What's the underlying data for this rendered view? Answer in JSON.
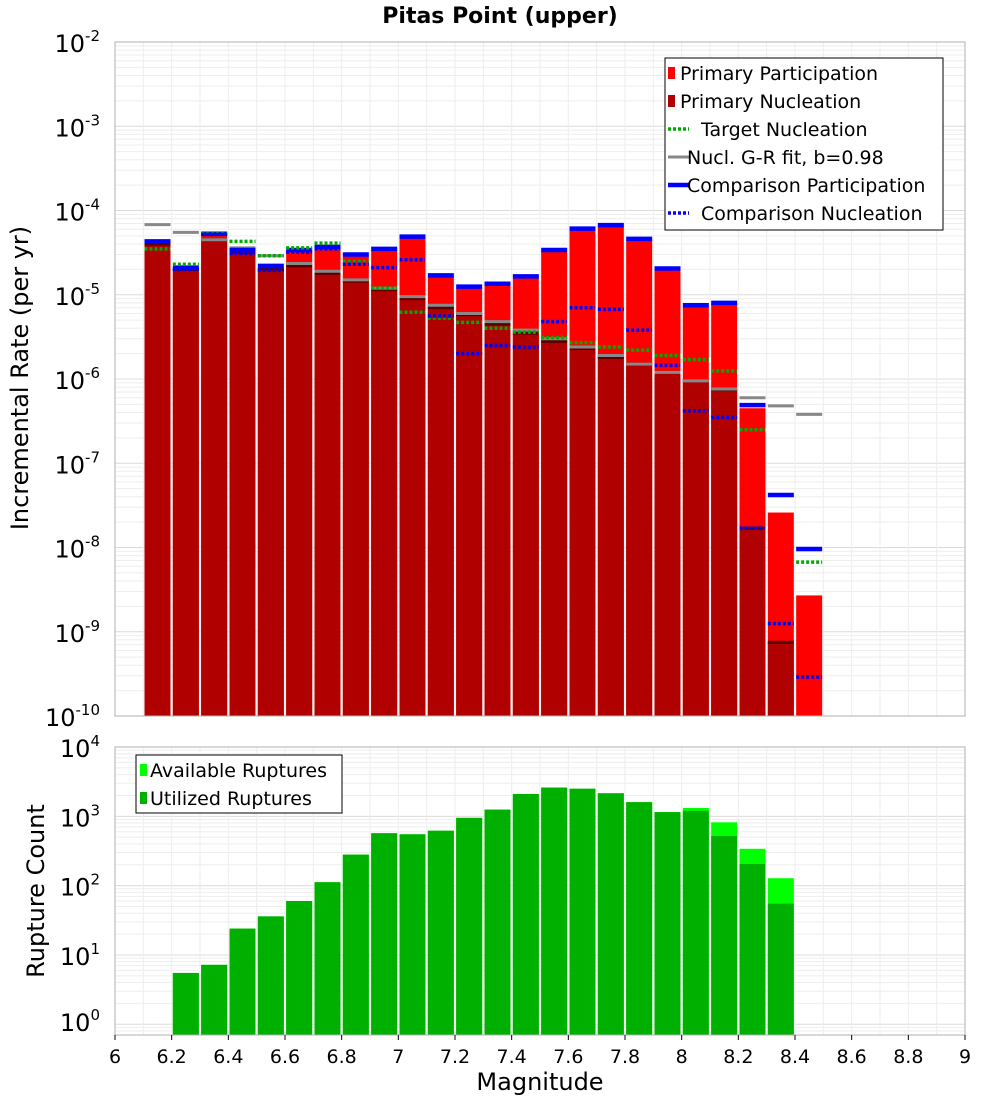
{
  "chart_data": [
    {
      "type": "bar",
      "title": "Pitas Point (upper)",
      "xlabel": "Magnitude",
      "ylabel": "Incremental Rate (per yr)",
      "yscale": "log",
      "xlim": [
        6,
        9
      ],
      "ylim": [
        1e-10,
        0.01
      ],
      "grid": true,
      "legend_position": "top-right",
      "x": [
        6.15,
        6.25,
        6.35,
        6.45,
        6.55,
        6.65,
        6.75,
        6.85,
        6.95,
        7.05,
        7.15,
        7.25,
        7.35,
        7.45,
        7.55,
        7.65,
        7.75,
        7.85,
        7.95,
        8.05,
        8.15,
        8.25,
        8.35,
        8.45
      ],
      "series": [
        {
          "name": "Primary Participation",
          "kind": "bar",
          "color": "#ff0000",
          "values": [
            4.2e-05,
            2e-05,
            5.3e-05,
            3.3e-05,
            2.1e-05,
            3.3e-05,
            3.6e-05,
            2.9e-05,
            3.4e-05,
            4.8e-05,
            1.65e-05,
            1.2e-05,
            1.3e-05,
            1.6e-05,
            3.3e-05,
            6e-05,
            6.5e-05,
            4.5e-05,
            2e-05,
            7.3e-06,
            7.8e-06,
            4.5e-07,
            2.6e-08,
            2.7e-09
          ]
        },
        {
          "name": "Primary Nucleation",
          "kind": "bar",
          "color": "#b00000",
          "values": [
            4e-05,
            2e-05,
            4.5e-05,
            3.2e-05,
            2e-05,
            2.2e-05,
            1.8e-05,
            1.45e-05,
            1.15e-05,
            9e-06,
            7e-06,
            5.8e-06,
            4.5e-06,
            3.5e-06,
            2.8e-06,
            2.3e-06,
            1.8e-06,
            1.5e-06,
            1.2e-06,
            9.5e-07,
            7.5e-07,
            1.7e-08,
            7.5e-10,
            1e-10
          ]
        },
        {
          "name": "Target Nucleation",
          "kind": "marker",
          "style": "dotted",
          "color": "#00aa00",
          "values": [
            3.5e-05,
            2.3e-05,
            5.3e-05,
            4.3e-05,
            2.9e-05,
            3.6e-05,
            4.1e-05,
            2.5e-05,
            1.2e-05,
            6.2e-06,
            5.3e-06,
            4.7e-06,
            4e-06,
            3.6e-06,
            3.1e-06,
            2.7e-06,
            2.4e-06,
            2.2e-06,
            1.9e-06,
            1.7e-06,
            1.25e-06,
            2.5e-07,
            null,
            6.7e-09
          ]
        },
        {
          "name": "Nucl. G-R fit, b=0.98",
          "kind": "marker",
          "style": "solid",
          "color": "#888888",
          "values": [
            6.8e-05,
            5.5e-05,
            4.5e-05,
            3.6e-05,
            2.9e-05,
            2.35e-05,
            1.9e-05,
            1.5e-05,
            1.2e-05,
            9.5e-06,
            7.5e-06,
            6e-06,
            4.8e-06,
            3.8e-06,
            3e-06,
            2.4e-06,
            1.9e-06,
            1.5e-06,
            1.2e-06,
            9.5e-07,
            7.6e-07,
            6e-07,
            4.8e-07,
            3.8e-07
          ]
        },
        {
          "name": "Comparison Participation",
          "kind": "marker",
          "style": "solid-thick",
          "color": "#0000ff",
          "values": [
            4.3e-05,
            2.1e-05,
            5.3e-05,
            3.4e-05,
            2.2e-05,
            3.4e-05,
            3.7e-05,
            3e-05,
            3.5e-05,
            4.9e-05,
            1.7e-05,
            1.25e-05,
            1.35e-05,
            1.65e-05,
            3.4e-05,
            6.1e-05,
            6.7e-05,
            4.6e-05,
            2.05e-05,
            7.5e-06,
            8e-06,
            4.9e-07,
            4.2e-08,
            9.6e-09
          ]
        },
        {
          "name": "Comparison Nucleation",
          "kind": "marker",
          "style": "dotted",
          "color": "#0000ff",
          "values": [
            null,
            2e-05,
            5.2e-05,
            3.1e-05,
            1.95e-05,
            3.2e-05,
            3.5e-05,
            2.3e-05,
            2.1e-05,
            2.6e-05,
            5.6e-06,
            2e-06,
            2.5e-06,
            2.4e-06,
            4.8e-06,
            7e-06,
            6.7e-06,
            3.8e-06,
            1.45e-06,
            4.2e-07,
            3.5e-07,
            1.7e-08,
            1.25e-09,
            2.9e-10
          ]
        }
      ]
    },
    {
      "type": "bar",
      "xlabel": "Magnitude",
      "ylabel": "Rupture Count",
      "yscale": "log",
      "xlim": [
        6,
        9
      ],
      "ylim": [
        0.7,
        10000
      ],
      "grid": true,
      "legend_position": "top-left",
      "x": [
        6.25,
        6.35,
        6.45,
        6.55,
        6.65,
        6.75,
        6.85,
        6.95,
        7.05,
        7.15,
        7.25,
        7.35,
        7.45,
        7.55,
        7.65,
        7.75,
        7.85,
        7.95,
        8.05,
        8.15,
        8.25,
        8.35
      ],
      "series": [
        {
          "name": "Available Ruptures",
          "color": "#00ff00",
          "values": [
            5.5,
            7.2,
            24,
            36,
            60,
            112,
            280,
            570,
            550,
            620,
            950,
            1250,
            2100,
            2600,
            2500,
            2150,
            1600,
            1150,
            1320,
            820,
            340,
            128
          ]
        },
        {
          "name": "Utilized Ruptures",
          "color": "#00b000",
          "values": [
            5.5,
            7.2,
            24,
            36,
            60,
            112,
            280,
            570,
            550,
            620,
            950,
            1250,
            2100,
            2600,
            2500,
            2150,
            1600,
            1150,
            1200,
            520,
            205,
            55
          ]
        }
      ],
      "xticks": [
        "6",
        "6.2",
        "6.4",
        "6.6",
        "6.8",
        "7",
        "7.2",
        "7.4",
        "7.6",
        "7.8",
        "8",
        "8.2",
        "8.4",
        "8.6",
        "8.8",
        "9"
      ]
    }
  ]
}
